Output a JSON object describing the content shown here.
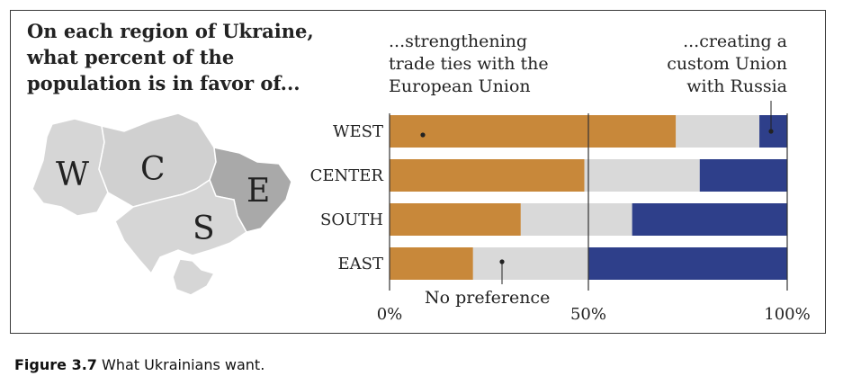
{
  "title": "On each region of Ukraine, what percent of the population is in favor of...",
  "caption": {
    "label": "Figure 3.7",
    "text": " What Ukrainians want."
  },
  "map": {
    "regions": [
      "W",
      "C",
      "E",
      "S"
    ]
  },
  "annotations": {
    "eu": [
      "...strengthening",
      "trade ties with the",
      "European Union"
    ],
    "russia": [
      "...creating a",
      "custom Union",
      "with Russia"
    ],
    "neutral": "No preference"
  },
  "colors": {
    "eu": "#c8883a",
    "neutral": "#d9d9d9",
    "russia": "#2e3f8a"
  },
  "chart_data": {
    "type": "bar",
    "orientation": "horizontal",
    "stacked": true,
    "categories": [
      "WEST",
      "CENTER",
      "SOUTH",
      "EAST"
    ],
    "series": [
      {
        "name": "...strengthening trade ties with the European Union",
        "values": [
          72,
          49,
          33,
          21
        ]
      },
      {
        "name": "No preference",
        "values": [
          21,
          29,
          28,
          29
        ]
      },
      {
        "name": "...creating a custom Union with Russia",
        "values": [
          7,
          22,
          39,
          50
        ]
      }
    ],
    "xlim": [
      0,
      100
    ],
    "xticks": [
      "0%",
      "50%",
      "100%"
    ]
  }
}
